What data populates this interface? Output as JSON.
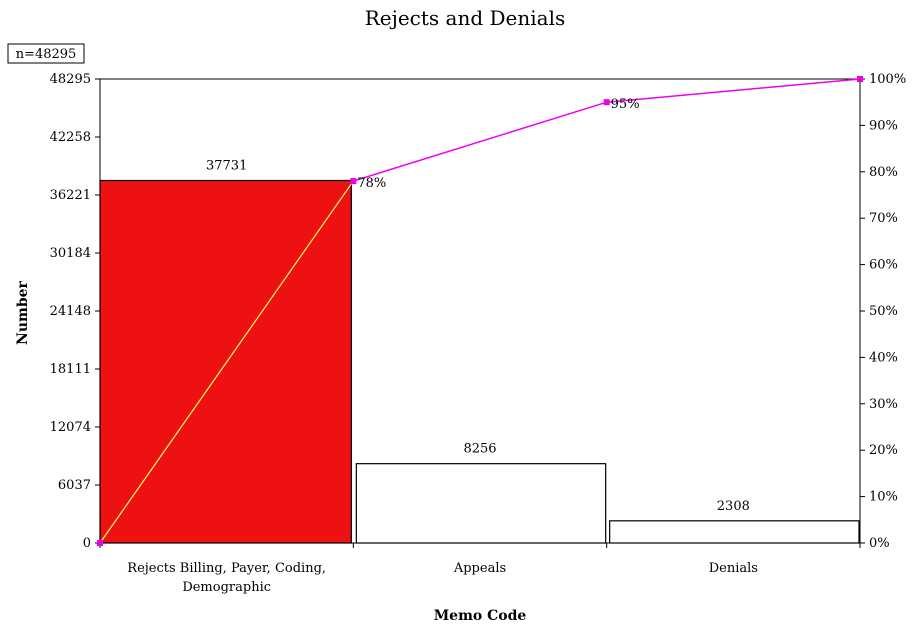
{
  "chart_data": {
    "type": "bar",
    "title": "Rejects and Denials",
    "note": "n=48295",
    "xlabel": "Memo Code",
    "ylabel": "Number",
    "categories": [
      [
        "Rejects Billing, Payer, Coding,",
        "Demographic"
      ],
      [
        "Appeals"
      ],
      [
        "Denials"
      ]
    ],
    "values": [
      37731,
      8256,
      2308
    ],
    "value_labels": [
      "37731",
      "8256",
      "2308"
    ],
    "ylim": [
      0,
      48295
    ],
    "yticks": [
      0,
      6037,
      12074,
      18111,
      24148,
      30184,
      36221,
      42258,
      48295
    ],
    "secondary_axis": {
      "ylim": [
        0,
        100
      ],
      "ticks": [
        "0%",
        "10%",
        "20%",
        "30%",
        "40%",
        "50%",
        "60%",
        "70%",
        "80%",
        "90%",
        "100%"
      ]
    },
    "cumulative_line": {
      "values_pct": [
        0,
        78,
        95,
        100
      ],
      "labels": [
        "",
        "78%",
        "95%",
        ""
      ]
    },
    "colors": {
      "highlight_bar": "#ee1111",
      "bar": "#ffffff",
      "bar_stroke": "#000000",
      "cumulative_line": "#ee00ee",
      "diagonal_line": "#ffff66"
    },
    "grid": false
  }
}
